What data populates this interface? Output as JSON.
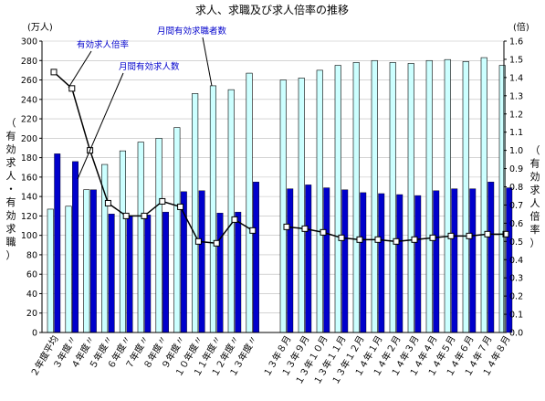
{
  "chart_data": {
    "type": "bar",
    "title": "求人、求職及び求人倍率の推移",
    "left_unit": "(万人)",
    "right_unit": "(倍)",
    "left_axis_label": "（有効求人・有効求職）",
    "right_axis_label": "（有効求人倍率）",
    "ylim_left": [
      0,
      300
    ],
    "ylim_right": [
      0,
      1.6
    ],
    "left_ticks": [
      "0",
      "20",
      "40",
      "60",
      "80",
      "100",
      "120",
      "140",
      "160",
      "180",
      "200",
      "220",
      "240",
      "260",
      "280",
      "300"
    ],
    "right_ticks": [
      "0.0",
      "0.1",
      "0.2",
      "0.3",
      "0.4",
      "0.5",
      "0.6",
      "0.7",
      "0.8",
      "0.9",
      "1.0",
      "1.1",
      "1.2",
      "1.3",
      "1.4",
      "1.5",
      "1.6"
    ],
    "categories": [
      "２年度平均",
      "３年度〃",
      "４年度〃",
      "５年度〃",
      "６年度〃",
      "７年度〃",
      "８年度〃",
      "９年度〃",
      "１０年度〃",
      "１１年度〃",
      "１２年度〃",
      "１３年度〃",
      "１３年８月",
      "１３年９月",
      "１３年１０月",
      "１３年１１月",
      "１３年１２月",
      "１４年１月",
      "１４年２月",
      "１４年３月",
      "１４年４月",
      "１４年５月",
      "１４年６月",
      "１４年７月",
      "１４年８月"
    ],
    "series": [
      {
        "name": "月間有効求職者数",
        "kind": "bar",
        "color": "#ccffff",
        "values": [
          127,
          130,
          147,
          173,
          187,
          196,
          200,
          211,
          246,
          254,
          250,
          267,
          260,
          262,
          270,
          275,
          278,
          280,
          278,
          277,
          280,
          281,
          279,
          283,
          275
        ]
      },
      {
        "name": "月間有効求人数",
        "kind": "bar",
        "color": "#0000cc",
        "values": [
          184,
          176,
          147,
          122,
          120,
          121,
          124,
          145,
          146,
          123,
          124,
          155,
          148,
          152,
          149,
          147,
          144,
          143,
          142,
          141,
          146,
          148,
          148,
          155,
          149
        ]
      },
      {
        "name": "有効求人倍率",
        "kind": "line",
        "axis": "right",
        "color": "#000000",
        "values": [
          1.43,
          1.34,
          1.0,
          0.71,
          0.64,
          0.64,
          0.72,
          0.69,
          0.5,
          0.49,
          0.62,
          0.56,
          0.58,
          0.57,
          0.55,
          0.52,
          0.51,
          0.51,
          0.5,
          0.51,
          0.52,
          0.53,
          0.53,
          0.54,
          0.54
        ]
      }
    ],
    "annotations": [
      {
        "text": "有効求人倍率",
        "color": "#0000cc"
      },
      {
        "text": "月間有効求職者数",
        "color": "#0000cc"
      },
      {
        "text": "月間有効求人数",
        "color": "#0000cc"
      }
    ]
  }
}
